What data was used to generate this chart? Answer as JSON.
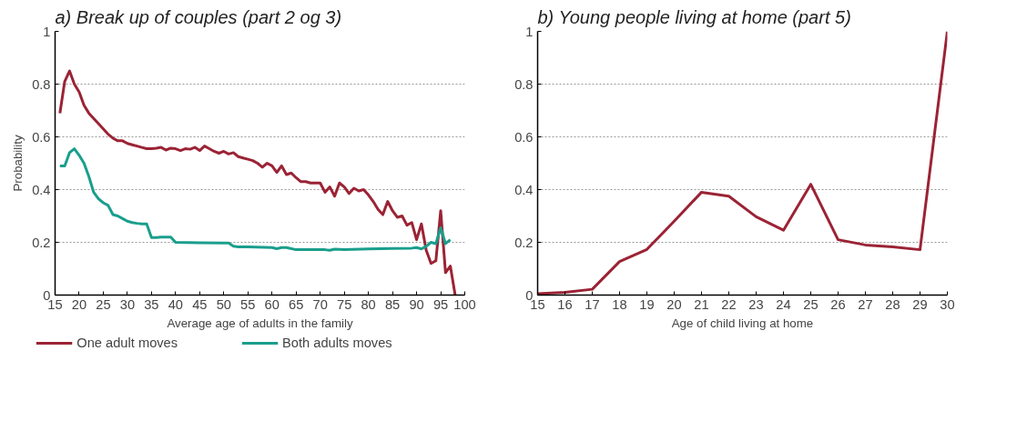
{
  "chart_data": [
    {
      "type": "line",
      "title": "a) Break up of couples (part 2 og 3)",
      "xlabel": "Average age of adults in the family",
      "ylabel": "Probability",
      "xlim": [
        15,
        100
      ],
      "xticks": [
        15,
        20,
        25,
        30,
        35,
        40,
        45,
        50,
        55,
        60,
        65,
        70,
        75,
        80,
        85,
        90,
        95,
        100
      ],
      "ylim": [
        0,
        1
      ],
      "yticks": [
        0,
        0.2,
        0.4,
        0.6,
        0.8,
        1
      ],
      "grid": "y",
      "legend": "bottom",
      "marker": "none",
      "line_style": "solid",
      "series": [
        {
          "name": "One adult moves",
          "color": "#9b2335",
          "x": [
            16,
            17,
            18,
            19,
            20,
            21,
            22,
            23,
            24,
            25,
            26,
            27,
            28,
            29,
            30,
            31,
            32,
            33,
            34,
            35,
            36,
            37,
            38,
            39,
            40,
            41,
            42,
            43,
            44,
            45,
            46,
            47,
            48,
            49,
            50,
            51,
            52,
            53,
            54,
            55,
            56,
            57,
            58,
            59,
            60,
            61,
            62,
            63,
            64,
            65,
            66,
            67,
            68,
            69,
            70,
            71,
            72,
            73,
            74,
            75,
            76,
            77,
            78,
            79,
            80,
            81,
            82,
            83,
            84,
            85,
            86,
            87,
            88,
            89,
            90,
            91,
            92,
            93,
            94,
            95,
            96,
            97,
            98
          ],
          "values": [
            0.69,
            0.81,
            0.85,
            0.8,
            0.77,
            0.72,
            0.69,
            0.67,
            0.65,
            0.63,
            0.61,
            0.595,
            0.585,
            0.585,
            0.575,
            0.57,
            0.565,
            0.56,
            0.555,
            0.555,
            0.557,
            0.56,
            0.55,
            0.557,
            0.555,
            0.548,
            0.555,
            0.553,
            0.56,
            0.548,
            0.565,
            0.555,
            0.545,
            0.538,
            0.545,
            0.535,
            0.54,
            0.525,
            0.52,
            0.515,
            0.51,
            0.5,
            0.485,
            0.5,
            0.49,
            0.465,
            0.49,
            0.457,
            0.463,
            0.445,
            0.43,
            0.43,
            0.425,
            0.425,
            0.425,
            0.39,
            0.41,
            0.375,
            0.425,
            0.41,
            0.385,
            0.405,
            0.395,
            0.4,
            0.38,
            0.355,
            0.325,
            0.305,
            0.355,
            0.32,
            0.295,
            0.3,
            0.265,
            0.275,
            0.21,
            0.27,
            0.17,
            0.12,
            0.13,
            0.32,
            0.085,
            0.11,
            0
          ]
        },
        {
          "name": "Both adults moves",
          "color": "#1a9e8c",
          "x": [
            16,
            17,
            18,
            19,
            20,
            21,
            22,
            23,
            24,
            25,
            26,
            27,
            28,
            29,
            30,
            31,
            32,
            33,
            34,
            35,
            36,
            37,
            38,
            39,
            40,
            45,
            50,
            51,
            52,
            53,
            55,
            60,
            61,
            62,
            63,
            65,
            70,
            71,
            72,
            73,
            75,
            80,
            85,
            89,
            90,
            91,
            92,
            93,
            94,
            95,
            96,
            97
          ],
          "values": [
            0.49,
            0.49,
            0.54,
            0.555,
            0.53,
            0.5,
            0.45,
            0.39,
            0.365,
            0.35,
            0.34,
            0.305,
            0.3,
            0.29,
            0.28,
            0.275,
            0.272,
            0.27,
            0.27,
            0.218,
            0.218,
            0.22,
            0.22,
            0.22,
            0.2,
            0.198,
            0.197,
            0.197,
            0.185,
            0.183,
            0.183,
            0.18,
            0.176,
            0.18,
            0.18,
            0.172,
            0.172,
            0.172,
            0.17,
            0.174,
            0.172,
            0.175,
            0.177,
            0.178,
            0.18,
            0.175,
            0.185,
            0.2,
            0.195,
            0.255,
            0.195,
            0.21
          ]
        }
      ]
    },
    {
      "type": "line",
      "title": "b) Young people living at home (part 5)",
      "xlabel": "Age of child living at home",
      "xlim": [
        15,
        30
      ],
      "xticks": [
        15,
        16,
        17,
        18,
        19,
        20,
        21,
        22,
        23,
        24,
        25,
        26,
        27,
        28,
        29,
        30
      ],
      "ylim": [
        0,
        1
      ],
      "yticks": [
        0,
        0.2,
        0.4,
        0.6,
        0.8,
        1
      ],
      "grid": "y",
      "marker": "none",
      "line_style": "solid",
      "series": [
        {
          "color": "#9b2335",
          "x": [
            15,
            16,
            17,
            18,
            19,
            20,
            21,
            22,
            23,
            24,
            25,
            26,
            27,
            28,
            29,
            30
          ],
          "values": [
            0.005,
            0.01,
            0.022,
            0.127,
            0.173,
            0.28,
            0.39,
            0.375,
            0.297,
            0.246,
            0.42,
            0.21,
            0.19,
            0.183,
            0.172,
            1
          ]
        }
      ]
    }
  ]
}
